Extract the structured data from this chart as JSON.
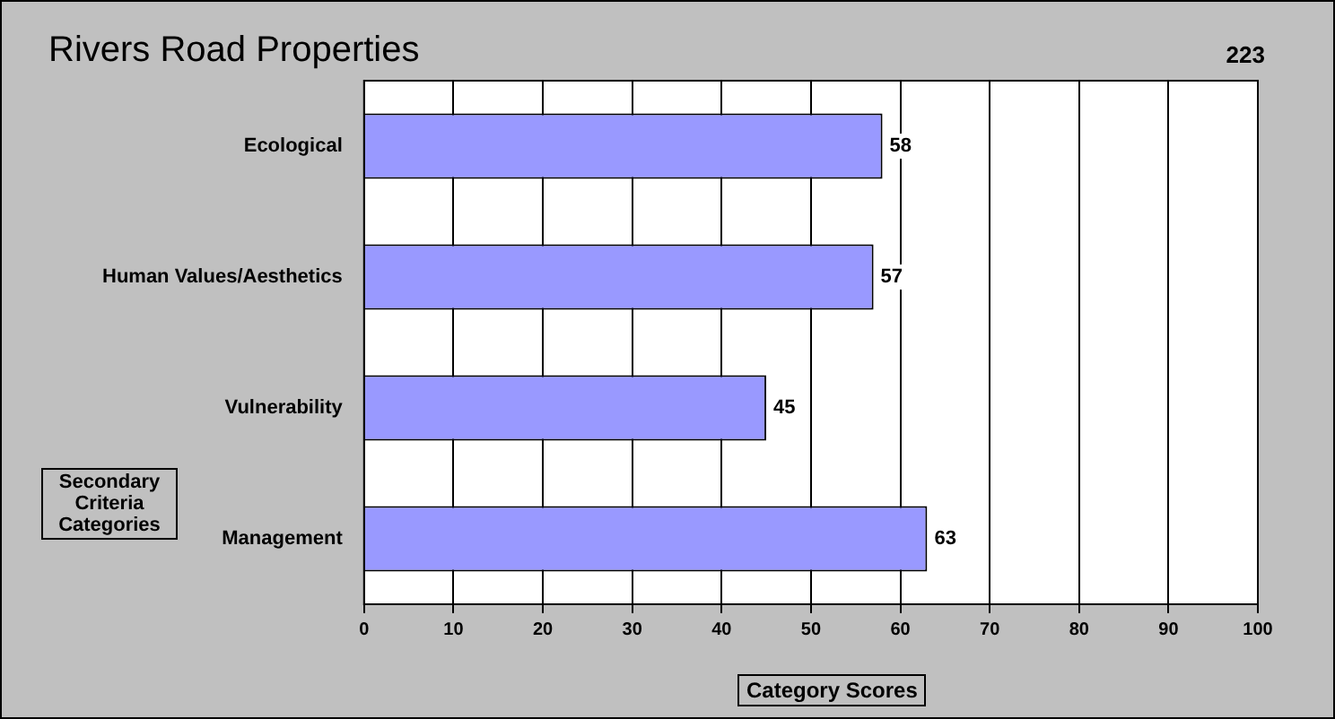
{
  "chart_data": {
    "type": "bar",
    "orientation": "horizontal",
    "title": "Rivers Road Properties",
    "annotations": [
      "223"
    ],
    "ylabel": "Secondary Criteria Categories",
    "xlabel": "Category Scores",
    "categories": [
      "Ecological",
      "Human Values/Aesthetics",
      "Vulnerability",
      "Management"
    ],
    "values": [
      58,
      57,
      45,
      63
    ],
    "color": "#9999ff",
    "xlim": [
      0,
      100
    ],
    "xticks": [
      0,
      10,
      20,
      30,
      40,
      50,
      60,
      70,
      80,
      90,
      100
    ],
    "grid": "x",
    "data_labels": true
  }
}
